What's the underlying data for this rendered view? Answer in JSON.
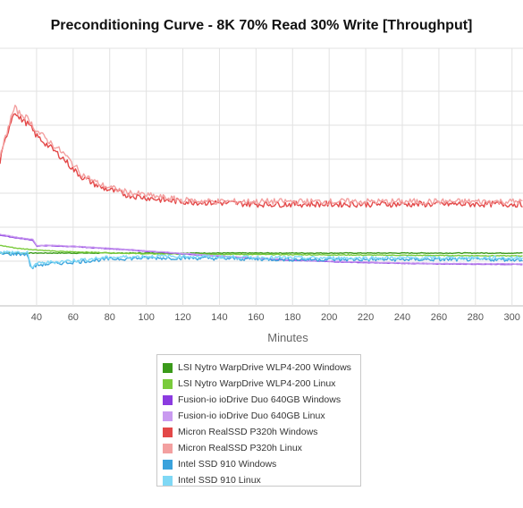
{
  "chart_data": {
    "type": "line",
    "title": "Preconditioning Curve - 8K 70% Read 30% Write [Throughput]",
    "xlabel": "Minutes",
    "ylabel": "",
    "x_ticks": [
      40,
      60,
      80,
      100,
      120,
      140,
      160,
      180,
      200,
      220,
      240,
      260,
      280,
      300
    ],
    "xlim": [
      20,
      306
    ],
    "ylim": [
      0,
      100
    ],
    "grid": true,
    "legend_position": "bottom",
    "series": [
      {
        "name": "LSI Nytro WarpDrive WLP4-200 Windows",
        "color": "#3a9a1a",
        "x": [
          20,
          306
        ],
        "y": [
          20.5,
          20.5
        ]
      },
      {
        "name": "LSI Nytro WarpDrive WLP4-200 Linux",
        "color": "#7acb3c",
        "x": [
          20,
          30,
          50,
          100,
          150,
          200,
          250,
          306
        ],
        "y": [
          23.5,
          22.3,
          21.2,
          20.2,
          20.0,
          19.8,
          19.6,
          19.4
        ]
      },
      {
        "name": "Fusion-io ioDrive Duo 640GB Windows",
        "color": "#8b3be0",
        "x": [
          20,
          28,
          38,
          40,
          45,
          60,
          80,
          100,
          120,
          140,
          160,
          180,
          200,
          220,
          240,
          260,
          280,
          306
        ],
        "y": [
          27.5,
          26.5,
          25.5,
          23.2,
          23.4,
          23.0,
          22.2,
          21.2,
          20.2,
          19.2,
          18.4,
          17.7,
          17.2,
          16.8,
          16.5,
          16.3,
          16.2,
          16.1
        ]
      },
      {
        "name": "Fusion-io ioDrive Duo 640GB Linux",
        "color": "#c99af0",
        "x": [
          20,
          28,
          38,
          40,
          45,
          60,
          80,
          100,
          120,
          140,
          160,
          180,
          200,
          220,
          240,
          260,
          280,
          306
        ],
        "y": [
          27.8,
          26.8,
          25.8,
          23.4,
          23.6,
          23.2,
          22.4,
          21.4,
          20.4,
          19.4,
          18.6,
          17.9,
          17.4,
          17.0,
          16.7,
          16.5,
          16.4,
          16.3
        ]
      },
      {
        "name": "Micron RealSSD P320h Windows",
        "color": "#e34848",
        "x": [
          20,
          22,
          24,
          26,
          28,
          30,
          33,
          36,
          40,
          45,
          50,
          55,
          60,
          65,
          70,
          75,
          80,
          90,
          100,
          110,
          120,
          140,
          160,
          180,
          200,
          220,
          240,
          260,
          280,
          306
        ],
        "y": [
          56,
          62,
          67,
          72,
          76,
          73,
          72,
          70,
          66,
          63,
          60,
          57,
          53,
          50,
          48,
          46,
          45,
          43,
          42,
          41,
          40.5,
          40,
          39.5,
          39.5,
          39.5,
          39.5,
          39.5,
          39.5,
          39.5,
          39.5
        ]
      },
      {
        "name": "Micron RealSSD P320h Linux",
        "color": "#f3a0a0",
        "x": [
          20,
          22,
          24,
          26,
          28,
          30,
          33,
          36,
          40,
          45,
          50,
          55,
          60,
          65,
          70,
          75,
          80,
          90,
          100,
          110,
          120,
          140,
          160,
          180,
          200,
          220,
          240,
          260,
          280,
          306
        ],
        "y": [
          57,
          63,
          68,
          73,
          77,
          75,
          74,
          72,
          68,
          65,
          62,
          59,
          55,
          51,
          49,
          47,
          46,
          44,
          43,
          42,
          41,
          40.5,
          40.5,
          40.5,
          40.5,
          40.5,
          40.5,
          40.5,
          40.5,
          40.5
        ]
      },
      {
        "name": "Intel SSD 910 Windows",
        "color": "#3aa2dc",
        "x": [
          20,
          30,
          35,
          37,
          40,
          45,
          60,
          80,
          100,
          120,
          140,
          160,
          180,
          200,
          220,
          240,
          260,
          280,
          306
        ],
        "y": [
          20.2,
          20.2,
          20.0,
          14.5,
          15.8,
          16.2,
          17.0,
          18.2,
          18.6,
          18.6,
          18.4,
          18.2,
          18.0,
          18.0,
          18.0,
          18.0,
          18.0,
          18.0,
          18.0
        ]
      },
      {
        "name": "Intel SSD 910 Linux",
        "color": "#7fd8f5",
        "x": [
          20,
          30,
          35,
          37,
          40,
          45,
          60,
          80,
          100,
          120,
          140,
          160,
          180,
          200,
          220,
          240,
          260,
          280,
          306
        ],
        "y": [
          20.8,
          20.8,
          20.5,
          15.0,
          16.3,
          16.8,
          17.6,
          18.8,
          19.2,
          19.2,
          19.0,
          18.8,
          18.6,
          18.6,
          18.6,
          18.6,
          18.6,
          18.6,
          18.6
        ]
      }
    ]
  }
}
